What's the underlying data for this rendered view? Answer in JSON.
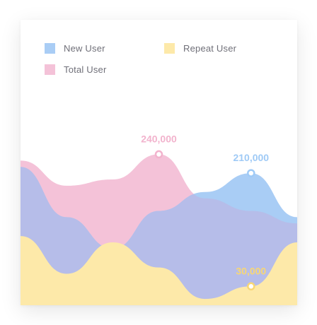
{
  "legend": {
    "new_user": "New User",
    "repeat_user": "Repeat User",
    "total_user": "Total User"
  },
  "colors": {
    "new_user": "#a9cdf5",
    "new_user_marker": "#9fcaf6",
    "repeat_user": "#fde9a9",
    "repeat_user_marker": "#f8d774",
    "total_user": "#f4c2d8",
    "total_user_marker": "#f2b3cd",
    "overlap": "#b6bde9"
  },
  "chart_data": {
    "type": "area",
    "title": "",
    "xlabel": "",
    "ylabel": "",
    "grid": false,
    "legend_position": "top-left",
    "x": [
      0,
      1,
      2,
      3,
      4,
      5,
      6
    ],
    "ylim": [
      0,
      400000
    ],
    "series": [
      {
        "name": "Total User",
        "values": [
          230000,
          190000,
          200000,
          240000,
          170000,
          150000,
          130000
        ]
      },
      {
        "name": "New User",
        "values": [
          220000,
          140000,
          90000,
          150000,
          180000,
          210000,
          140000
        ]
      },
      {
        "name": "Repeat User",
        "values": [
          110000,
          50000,
          100000,
          60000,
          10000,
          30000,
          100000
        ]
      }
    ],
    "annotations": [
      {
        "series": "Total User",
        "x": 3,
        "value": 240000,
        "label": "240,000"
      },
      {
        "series": "New User",
        "x": 5,
        "value": 210000,
        "label": "210,000"
      },
      {
        "series": "Repeat User",
        "x": 5,
        "value": 30000,
        "label": "30,000"
      }
    ]
  }
}
